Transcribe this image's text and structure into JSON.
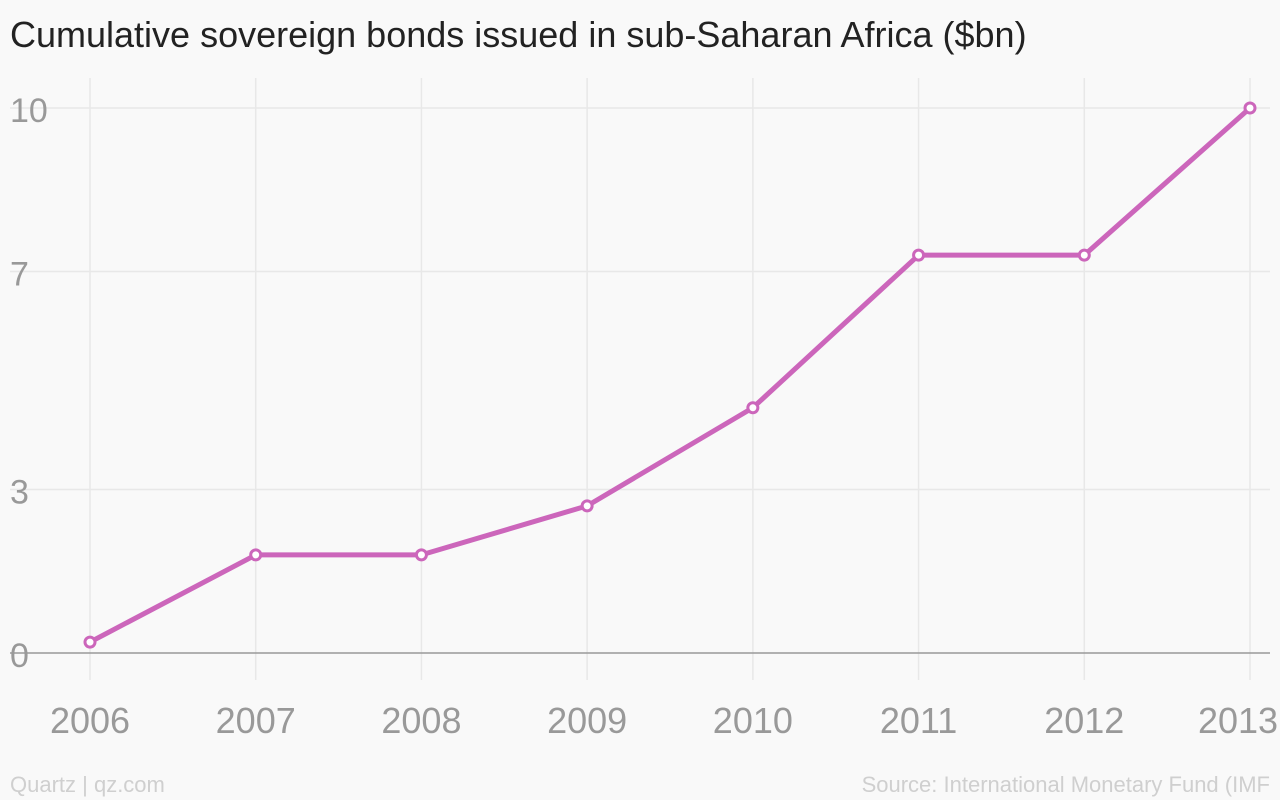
{
  "chart_data": {
    "type": "line",
    "title": "Cumulative sovereign bonds issued in sub-Saharan Africa ($bn)",
    "x": [
      "2006",
      "2007",
      "2008",
      "2009",
      "2010",
      "2011",
      "2012",
      "2013"
    ],
    "series": [
      {
        "values": [
          0.2,
          1.8,
          1.8,
          2.7,
          4.5,
          7.3,
          7.3,
          10.0
        ]
      }
    ],
    "ylim": [
      0,
      10
    ],
    "yticks": [
      0,
      3,
      7,
      10
    ],
    "ytick_labels": [
      "0",
      "3",
      "7",
      "10"
    ],
    "xlabel": "",
    "ylabel": "",
    "grid": true,
    "colors": {
      "line": "#cc66bb",
      "grid": "#e8e8e8",
      "baseline": "#999999",
      "tick_text": "#999999",
      "background": "#f9f9f9"
    }
  },
  "footer": {
    "credit": "Quartz | qz.com",
    "source": "Source: International Monetary Fund (IMF"
  }
}
